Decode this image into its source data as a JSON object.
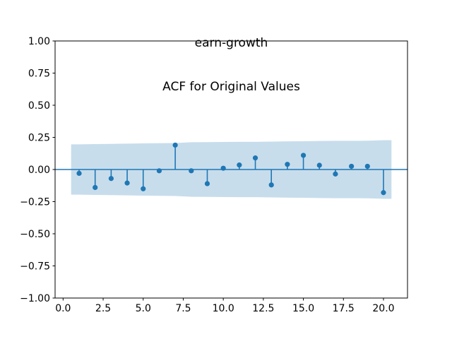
{
  "figure": {
    "title_line1": "earn-growth",
    "title_line2": "ACF for Original Values"
  },
  "chart_data": {
    "type": "stem",
    "title": "earn-growth\nACF for Original Values",
    "xlabel": "",
    "ylabel": "",
    "xlim": [
      -0.5,
      21.5
    ],
    "ylim": [
      -1.0,
      1.0
    ],
    "grid": false,
    "legend": "none",
    "x_tick_values": [
      0.0,
      2.5,
      5.0,
      7.5,
      10.0,
      12.5,
      15.0,
      17.5,
      20.0
    ],
    "x_tick_labels": [
      "0.0",
      "2.5",
      "5.0",
      "7.5",
      "10.0",
      "12.5",
      "15.0",
      "17.5",
      "20.0"
    ],
    "y_tick_values": [
      1.0,
      0.75,
      0.5,
      0.25,
      0.0,
      -0.25,
      -0.5,
      -0.75,
      -1.0
    ],
    "y_tick_labels": [
      "1.00",
      "0.75",
      "0.50",
      "0.25",
      "0.00",
      "−0.25",
      "−0.50",
      "−0.75",
      "−1.00"
    ],
    "lags": [
      1,
      2,
      3,
      4,
      5,
      6,
      7,
      8,
      9,
      10,
      11,
      12,
      13,
      14,
      15,
      16,
      17,
      18,
      19,
      20
    ],
    "values": [
      -0.03,
      -0.14,
      -0.07,
      -0.105,
      -0.15,
      -0.01,
      0.19,
      -0.01,
      -0.11,
      0.01,
      0.035,
      0.09,
      -0.12,
      0.04,
      0.11,
      0.033,
      -0.035,
      0.025,
      0.025,
      -0.18
    ],
    "confidence_band": {
      "x": [
        0.5,
        1,
        2,
        3,
        4,
        5,
        6,
        7,
        8,
        9,
        10,
        11,
        12,
        13,
        14,
        15,
        16,
        17,
        18,
        19,
        20,
        20.5
      ],
      "upper": [
        0.196,
        0.196,
        0.198,
        0.199,
        0.201,
        0.203,
        0.205,
        0.206,
        0.212,
        0.213,
        0.214,
        0.215,
        0.215,
        0.217,
        0.219,
        0.22,
        0.222,
        0.223,
        0.223,
        0.224,
        0.228,
        0.228
      ],
      "lower": [
        -0.196,
        -0.196,
        -0.198,
        -0.199,
        -0.201,
        -0.203,
        -0.205,
        -0.206,
        -0.212,
        -0.213,
        -0.214,
        -0.215,
        -0.215,
        -0.217,
        -0.219,
        -0.22,
        -0.222,
        -0.223,
        -0.223,
        -0.224,
        -0.228,
        -0.228
      ]
    },
    "colors": {
      "stem": "#1f77b4",
      "band": "#1f77b4",
      "band_opacity": 0.25,
      "axis": "#000000",
      "text": "#000000",
      "background": "#ffffff"
    }
  }
}
